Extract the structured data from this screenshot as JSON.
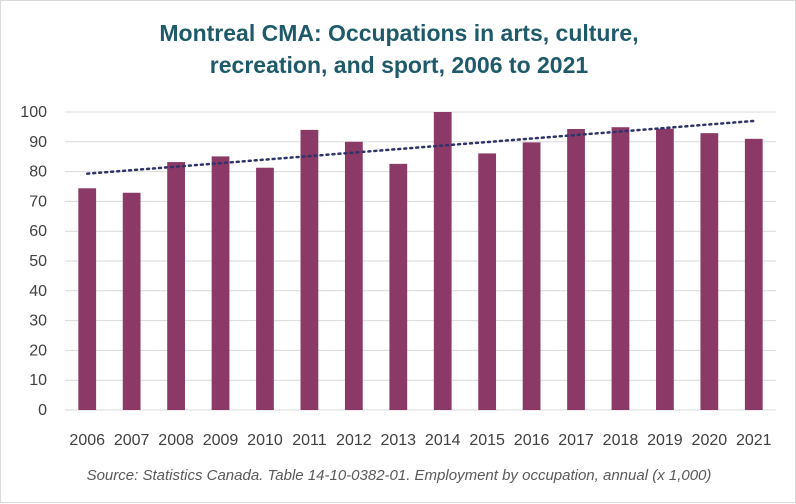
{
  "title_line1": "Montreal CMA: Occupations in arts, culture,",
  "title_line2": "recreation, and sport, 2006 to 2021",
  "source": "Source: Statistics Canada. Table 14-10-0382-01. Employment by occupation, annual (x 1,000)",
  "colors": {
    "bar": "#8b3a68",
    "trendline": "#2f3368",
    "title": "#1f5a6b",
    "grid": "#d9d9d9",
    "tick_text": "#404040"
  },
  "chart_data": {
    "type": "bar",
    "categories": [
      "2006",
      "2007",
      "2008",
      "2009",
      "2010",
      "2011",
      "2012",
      "2013",
      "2014",
      "2015",
      "2016",
      "2017",
      "2018",
      "2019",
      "2020",
      "2021"
    ],
    "values": [
      74.4,
      72.9,
      83.2,
      85.1,
      81.3,
      94.0,
      90.0,
      82.6,
      100.0,
      86.1,
      89.8,
      94.3,
      94.9,
      94.4,
      92.9,
      91.0
    ],
    "trendline": {
      "type": "linear",
      "style": "dotted",
      "start": 79.3,
      "end": 97.0
    },
    "ylim": [
      0,
      100
    ],
    "yticks": [
      0,
      10,
      20,
      30,
      40,
      50,
      60,
      70,
      80,
      90,
      100
    ],
    "grid": true,
    "legend": "none",
    "xlabel": "",
    "ylabel": ""
  }
}
